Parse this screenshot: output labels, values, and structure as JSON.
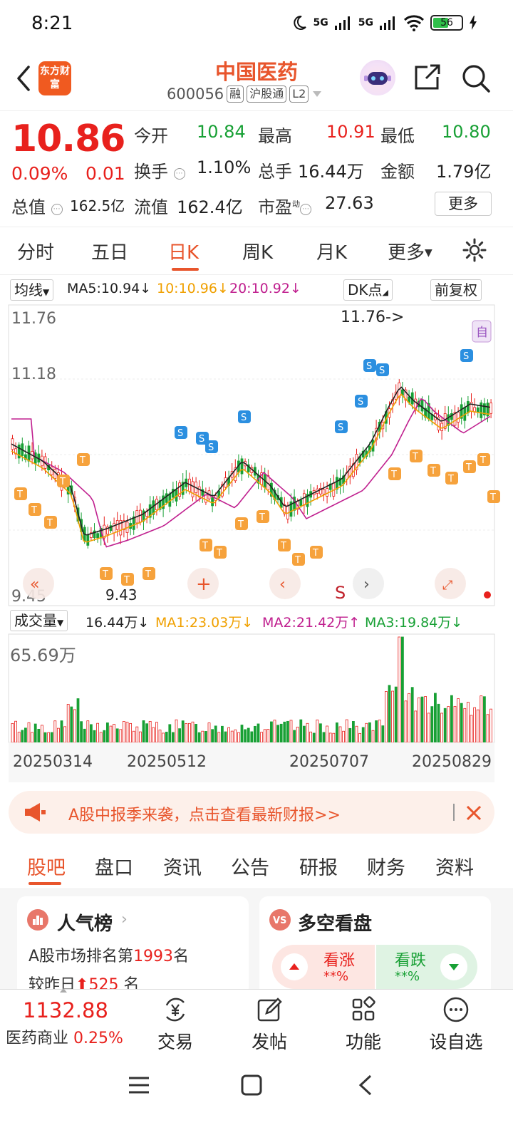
{
  "status": {
    "time": "8:21",
    "net1": "5G",
    "net2": "5G",
    "battery": "56",
    "battery_level": 0.56
  },
  "header": {
    "title": "中国医药",
    "code": "600056",
    "tag1": "融",
    "tag2": "沪股通",
    "tag3": "L2",
    "logo": "东方财富"
  },
  "quote": {
    "price": "10.86",
    "change_pct": "0.09%",
    "change": "0.01",
    "open_label": "今开",
    "open": "10.84",
    "high_label": "最高",
    "high": "10.91",
    "low_label": "最低",
    "low": "10.80",
    "turnover_label": "换手",
    "turnover": "1.10%",
    "volume_label": "总手",
    "volume": "16.44万",
    "amount_label": "金额",
    "amount": "1.79亿",
    "mktcap_label": "总值",
    "mktcap": "162.5亿",
    "float_label": "流值",
    "float": "162.4亿",
    "pe_label": "市盈",
    "pe_sup": "动",
    "pe": "27.63",
    "more": "更多"
  },
  "period_tabs": [
    "分时",
    "五日",
    "日K",
    "周K",
    "月K",
    "更多"
  ],
  "ma_legend": {
    "selector": "均线",
    "ma5": "MA5:10.94",
    "ma10": "10:10.96",
    "ma20": "20:10.92",
    "dk": "DK点",
    "adjust": "前复权"
  },
  "price_axis": {
    "top": "11.76",
    "mid": "11.18",
    "low": "9.45",
    "max_note": "11.76->",
    "min_note": "9.43",
    "auto_badge": "自"
  },
  "volume_legend": {
    "selector": "成交量",
    "vol": "16.44万",
    "ma1": "MA1:23.03万",
    "ma2": "MA2:21.42万",
    "ma3": "MA3:19.84万",
    "axis_max": "65.69万"
  },
  "dates": [
    "20250314",
    "20250512",
    "20250707",
    "20250829"
  ],
  "banner": {
    "text": "A股中报季来袭，点击查看最新财报>>"
  },
  "section_tabs": [
    "股吧",
    "盘口",
    "资讯",
    "公告",
    "研报",
    "财务",
    "资料"
  ],
  "popularity": {
    "title": "人气榜",
    "line1_pre": "A股市场排名第",
    "rank": "1993",
    "line1_post": "名",
    "line2_pre": "较昨日",
    "delta": "525",
    "line2_post": "名"
  },
  "sentiment": {
    "title": "多空看盘",
    "bull": "看涨",
    "bull_pct": "**%",
    "bear": "看跌",
    "bear_pct": "**%"
  },
  "bottom_bar": {
    "index_value": "1132.88",
    "index_name": "医药商业",
    "index_change": "0.25%",
    "trade": "交易",
    "post": "发帖",
    "functions": "功能",
    "watch": "设自选"
  },
  "colors": {
    "accent": "#e8552c",
    "up": "#e8211d",
    "down": "#18a035",
    "ma5": "#222222",
    "ma10": "#f0a000",
    "ma20": "#c0208f"
  }
}
